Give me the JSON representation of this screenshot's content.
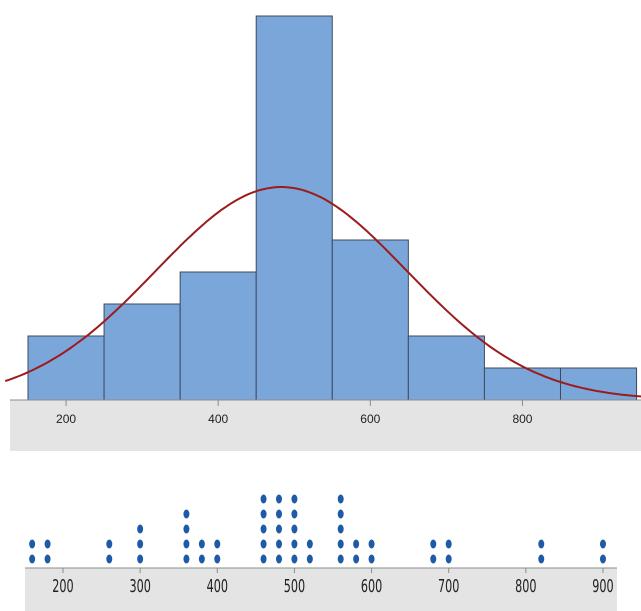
{
  "chart_data": [
    {
      "type": "bar",
      "subtype": "histogram",
      "bins": [
        {
          "start": 150,
          "end": 250,
          "count": 2
        },
        {
          "start": 250,
          "end": 350,
          "count": 3
        },
        {
          "start": 350,
          "end": 450,
          "count": 4
        },
        {
          "start": 450,
          "end": 550,
          "count": 12
        },
        {
          "start": 550,
          "end": 650,
          "count": 5
        },
        {
          "start": 650,
          "end": 750,
          "count": 2
        },
        {
          "start": 750,
          "end": 850,
          "count": 1
        },
        {
          "start": 850,
          "end": 950,
          "count": 1
        }
      ],
      "fit_curve": {
        "type": "normal",
        "mean": 483,
        "sd": 165
      },
      "x_ticks": [
        "200",
        "400",
        "600",
        "800"
      ],
      "xlim": [
        140,
        960
      ],
      "ylim": [
        0,
        12.3
      ],
      "colors": {
        "bar": "#7ba6da",
        "bar_edge": "#3c4a5e",
        "curve": "#9b1c1c",
        "axis_band": "#e4e4e4"
      }
    },
    {
      "type": "scatter",
      "subtype": "dotplot",
      "values": [
        160,
        160,
        180,
        180,
        260,
        260,
        300,
        300,
        300,
        360,
        360,
        360,
        360,
        380,
        380,
        400,
        400,
        460,
        460,
        460,
        460,
        460,
        480,
        480,
        480,
        480,
        480,
        500,
        500,
        500,
        500,
        500,
        520,
        520,
        560,
        560,
        560,
        560,
        560,
        580,
        580,
        600,
        600,
        680,
        680,
        700,
        700,
        820,
        820,
        900,
        900
      ],
      "x_ticks": [
        "200",
        "300",
        "400",
        "500",
        "600",
        "700",
        "800",
        "900"
      ],
      "xlim": [
        150,
        920
      ],
      "colors": {
        "dot": "#1f5aa6",
        "axis_band": "#e4e4e4"
      }
    }
  ]
}
